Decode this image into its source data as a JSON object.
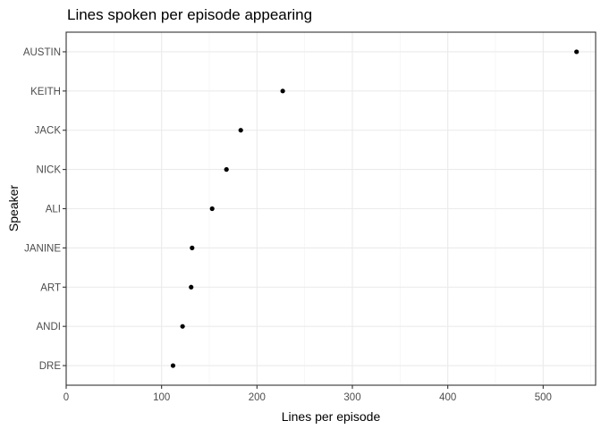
{
  "chart_data": {
    "type": "scatter",
    "title": "Lines spoken per episode appearing",
    "xlabel": "Lines per episode",
    "ylabel": "Speaker",
    "xlim": [
      0,
      555
    ],
    "x_ticks": [
      0,
      100,
      200,
      300,
      400,
      500
    ],
    "x_tick_labels": [
      "0",
      "100",
      "200",
      "300",
      "400",
      "500"
    ],
    "categories": [
      "AUSTIN",
      "KEITH",
      "JACK",
      "NICK",
      "ALI",
      "JANINE",
      "ART",
      "ANDI",
      "DRE"
    ],
    "values": [
      535,
      227,
      183,
      168,
      153,
      132,
      131,
      122,
      112
    ],
    "grid": true,
    "theme": "bw"
  }
}
